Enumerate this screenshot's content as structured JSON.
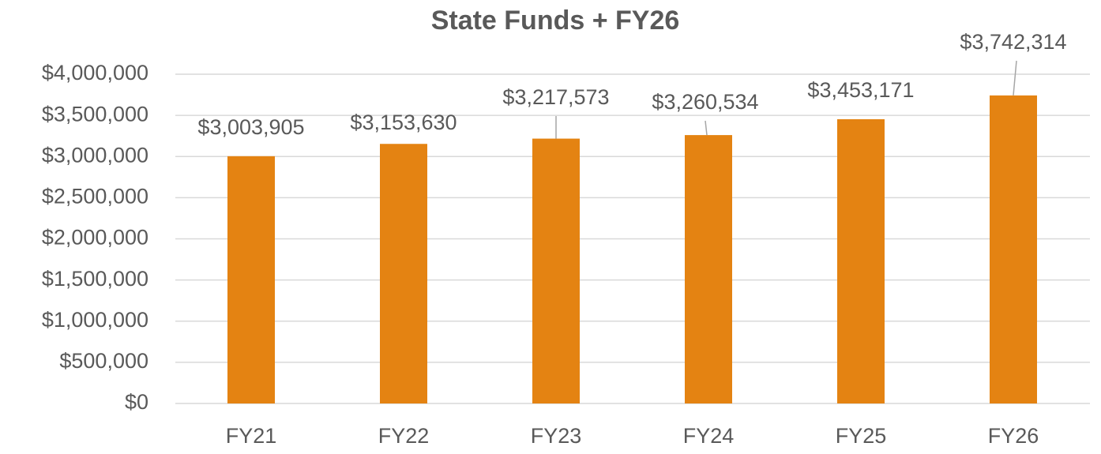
{
  "chart_data": {
    "type": "bar",
    "title": "State Funds + FY26",
    "categories": [
      "FY21",
      "FY22",
      "FY23",
      "FY24",
      "FY25",
      "FY26"
    ],
    "values": [
      3003905,
      3153630,
      3217573,
      3260534,
      3453171,
      3742314
    ],
    "value_labels": [
      "$3,003,905",
      "$3,153,630",
      "$3,217,573",
      "$3,260,534",
      "$3,453,171",
      "$3,742,314"
    ],
    "color": "#e48312",
    "ylim": [
      0,
      4000000
    ],
    "yticks": [
      {
        "value": 0,
        "label": "$0"
      },
      {
        "value": 500000,
        "label": "$500,000"
      },
      {
        "value": 1000000,
        "label": "$1,000,000"
      },
      {
        "value": 1500000,
        "label": "$1,500,000"
      },
      {
        "value": 2000000,
        "label": "$2,000,000"
      },
      {
        "value": 2500000,
        "label": "$2,500,000"
      },
      {
        "value": 3000000,
        "label": "$3,000,000"
      },
      {
        "value": 3500000,
        "label": "$3,500,000"
      },
      {
        "value": 4000000,
        "label": "$4,000,000"
      }
    ],
    "grid": true
  }
}
